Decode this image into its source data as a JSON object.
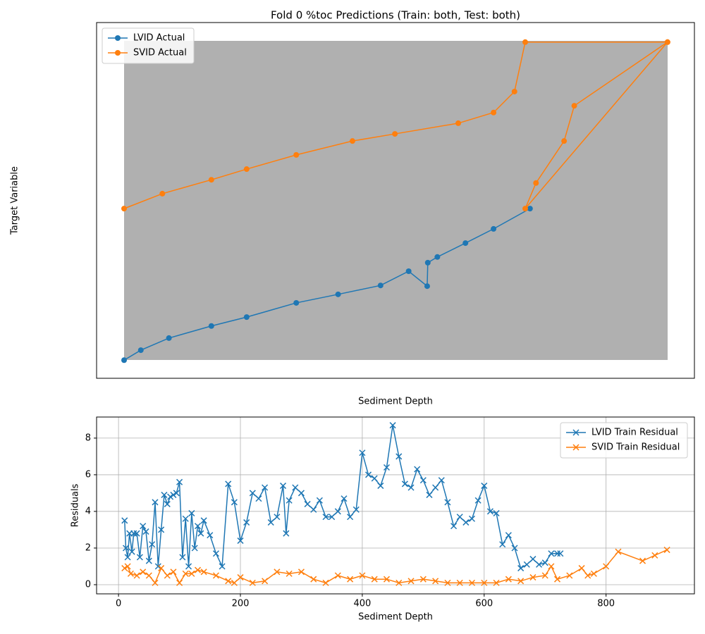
{
  "chart_data": [
    {
      "type": "line",
      "title": "Fold 0 %toc Predictions (Train: both, Test: both)",
      "xlabel": "Sediment Depth",
      "ylabel": "Target Variable",
      "xlim": [
        0,
        100
      ],
      "ylim": [
        0,
        100
      ],
      "marker": "o",
      "legend": "upper left",
      "background": "#b0b0b0",
      "series": [
        {
          "name": "LVID Actual",
          "color": "#1f77b4",
          "x": [
            4.6,
            7.4,
            12.1,
            19.2,
            25.1,
            33.4,
            40.4,
            47.5,
            52.2,
            55.3,
            55.4,
            57.0,
            61.7,
            66.4,
            72.5
          ],
          "values": [
            5.1,
            7.9,
            11.3,
            14.7,
            17.2,
            21.2,
            23.6,
            26.1,
            30.1,
            25.9,
            32.5,
            34.1,
            38.0,
            42.0,
            47.7
          ]
        },
        {
          "name": "SVID Actual",
          "color": "#ff7f0e",
          "x": [
            4.6,
            11.0,
            19.2,
            25.1,
            33.4,
            42.8,
            49.9,
            60.5,
            66.4,
            69.9,
            71.7,
            95.5,
            79.9,
            78.2,
            73.5,
            71.7,
            95.5
          ],
          "values": [
            47.7,
            51.9,
            55.8,
            58.8,
            62.8,
            66.7,
            68.7,
            71.7,
            74.7,
            80.6,
            94.5,
            94.5,
            76.6,
            66.7,
            54.9,
            47.7,
            94.5
          ]
        }
      ]
    },
    {
      "type": "line",
      "xlabel": "Sediment Depth",
      "ylabel": "Residuals",
      "xlim": [
        -36,
        945
      ],
      "ylim": [
        -0.5,
        9.15
      ],
      "xticks": [
        0,
        200,
        400,
        600,
        800
      ],
      "yticks": [
        0,
        2,
        4,
        6,
        8
      ],
      "grid": true,
      "marker": "x",
      "legend": "upper right",
      "series": [
        {
          "name": "LVID Train Residual",
          "color": "#1f77b4",
          "x": [
            10,
            12,
            15,
            18,
            22,
            25,
            30,
            35,
            40,
            45,
            50,
            55,
            60,
            65,
            70,
            75,
            80,
            85,
            90,
            95,
            100,
            105,
            110,
            115,
            120,
            125,
            130,
            135,
            140,
            150,
            160,
            170,
            180,
            190,
            200,
            210,
            220,
            230,
            240,
            250,
            260,
            270,
            275,
            280,
            290,
            300,
            310,
            320,
            330,
            340,
            350,
            360,
            370,
            380,
            390,
            400,
            410,
            420,
            430,
            440,
            450,
            460,
            470,
            480,
            490,
            500,
            510,
            520,
            530,
            540,
            550,
            560,
            570,
            580,
            590,
            600,
            610,
            620,
            630,
            640,
            650,
            660,
            670,
            680,
            690,
            700,
            710,
            720,
            725
          ],
          "values": [
            3.5,
            2.0,
            1.5,
            2.8,
            1.8,
            2.8,
            2.8,
            1.5,
            3.2,
            2.9,
            1.3,
            2.2,
            4.5,
            1.0,
            3.0,
            4.9,
            4.4,
            4.8,
            4.9,
            5.0,
            5.6,
            1.5,
            3.6,
            1.0,
            3.9,
            2.0,
            3.2,
            2.8,
            3.5,
            2.7,
            1.7,
            1.0,
            5.5,
            4.5,
            2.4,
            3.4,
            5.0,
            4.7,
            5.3,
            3.4,
            3.7,
            5.4,
            2.8,
            4.6,
            5.3,
            5.0,
            4.4,
            4.1,
            4.6,
            3.7,
            3.7,
            4.0,
            4.7,
            3.7,
            4.1,
            7.2,
            6.0,
            5.8,
            5.4,
            6.4,
            8.7,
            7.0,
            5.5,
            5.3,
            6.3,
            5.7,
            4.9,
            5.3,
            5.7,
            4.5,
            3.2,
            3.7,
            3.4,
            3.6,
            4.6,
            5.4,
            4.0,
            3.9,
            2.2,
            2.7,
            2.0,
            0.9,
            1.1,
            1.4,
            1.1,
            1.2,
            1.7,
            1.7,
            1.7
          ]
        },
        {
          "name": "SVID Train Residual",
          "color": "#ff7f0e",
          "x": [
            10,
            15,
            20,
            30,
            40,
            50,
            60,
            70,
            80,
            90,
            100,
            110,
            120,
            130,
            140,
            160,
            180,
            190,
            200,
            220,
            240,
            260,
            280,
            300,
            320,
            340,
            360,
            380,
            400,
            420,
            440,
            460,
            480,
            500,
            520,
            540,
            560,
            580,
            600,
            620,
            640,
            660,
            680,
            700,
            710,
            720,
            740,
            760,
            770,
            780,
            800,
            820,
            860,
            880,
            900
          ],
          "values": [
            0.9,
            1.0,
            0.6,
            0.5,
            0.7,
            0.5,
            0.1,
            0.9,
            0.5,
            0.7,
            0.1,
            0.6,
            0.6,
            0.8,
            0.7,
            0.5,
            0.2,
            0.1,
            0.4,
            0.1,
            0.2,
            0.7,
            0.6,
            0.7,
            0.3,
            0.1,
            0.5,
            0.3,
            0.5,
            0.3,
            0.3,
            0.1,
            0.2,
            0.3,
            0.2,
            0.1,
            0.1,
            0.1,
            0.1,
            0.1,
            0.3,
            0.2,
            0.4,
            0.5,
            1.0,
            0.3,
            0.5,
            0.9,
            0.5,
            0.6,
            1.0,
            1.8,
            1.3,
            1.6,
            1.9
          ]
        }
      ]
    }
  ]
}
